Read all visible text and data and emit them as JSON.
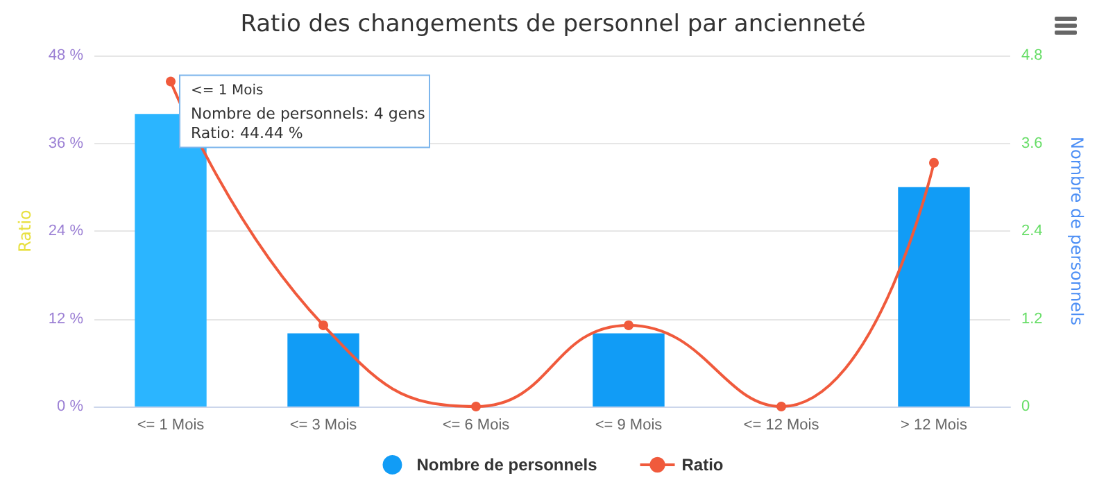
{
  "chart_data": {
    "type": "bar",
    "title": "Ratio des changements de personnel par ancienneté",
    "ylabel": "Ratio",
    "y2label": "Nombre de personnels",
    "categories": [
      "<= 1 Mois",
      "<= 3 Mois",
      "<= 6 Mois",
      "<= 9 Mois",
      "<= 12 Mois",
      "> 12 Mois"
    ],
    "series": [
      {
        "name": "Nombre de personnels",
        "axis": "y2",
        "color": "#119cf6",
        "colors": [
          "#2bb5ff",
          "#119cf6",
          "#119cf6",
          "#119cf6",
          "#119cf6",
          "#119cf6"
        ],
        "values": [
          4,
          1,
          0,
          1,
          0,
          3
        ]
      },
      {
        "name": "Ratio",
        "type": "line",
        "color": "#f05a3c",
        "values": [
          44.44,
          11.11,
          0,
          11.11,
          0,
          33.33
        ]
      }
    ],
    "ylim": [
      0,
      48
    ],
    "yticks": [
      {
        "value": 0,
        "label": "0 %"
      },
      {
        "value": 12,
        "label": "12 %"
      },
      {
        "value": 24,
        "label": "24 %"
      },
      {
        "value": 36,
        "label": "36 %"
      },
      {
        "value": 48,
        "label": "48 %"
      }
    ],
    "y2lim": [
      0,
      4.8
    ],
    "y2ticks": [
      0,
      1.2,
      2.4,
      3.6,
      4.8
    ],
    "annotations": [
      {
        "text": "<= 1 Mois",
        "x": "<= 1 Mois",
        "y": 44.44
      },
      "Nombre de personnels: 4 gens",
      "Ratio: 44.44 %"
    ],
    "grid": "y",
    "legend": "bottom",
    "marker": "circle",
    "line_style": "solid"
  }
}
